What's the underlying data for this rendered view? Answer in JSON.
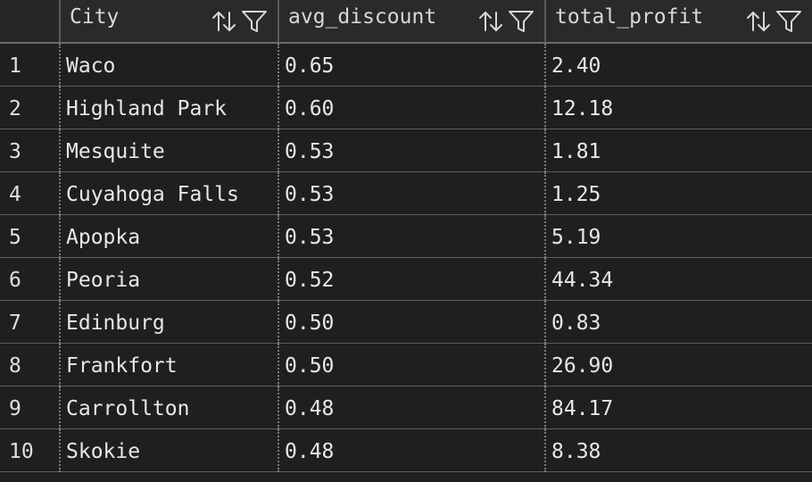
{
  "table": {
    "columns": [
      {
        "key": "city",
        "label": "City"
      },
      {
        "key": "avg_discount",
        "label": "avg_discount"
      },
      {
        "key": "total_profit",
        "label": "total_profit"
      }
    ],
    "rows": [
      {
        "index": "1",
        "city": "Waco",
        "avg_discount": "0.65",
        "total_profit": "2.40"
      },
      {
        "index": "2",
        "city": "Highland Park",
        "avg_discount": "0.60",
        "total_profit": "12.18"
      },
      {
        "index": "3",
        "city": "Mesquite",
        "avg_discount": "0.53",
        "total_profit": "1.81"
      },
      {
        "index": "4",
        "city": "Cuyahoga Falls",
        "avg_discount": "0.53",
        "total_profit": "1.25"
      },
      {
        "index": "5",
        "city": "Apopka",
        "avg_discount": "0.53",
        "total_profit": "5.19"
      },
      {
        "index": "6",
        "city": "Peoria",
        "avg_discount": "0.52",
        "total_profit": "44.34"
      },
      {
        "index": "7",
        "city": "Edinburg",
        "avg_discount": "0.50",
        "total_profit": "0.83"
      },
      {
        "index": "8",
        "city": "Frankfort",
        "avg_discount": "0.50",
        "total_profit": "26.90"
      },
      {
        "index": "9",
        "city": "Carrollton",
        "avg_discount": "0.48",
        "total_profit": "84.17"
      },
      {
        "index": "10",
        "city": "Skokie",
        "avg_discount": "0.48",
        "total_profit": "8.38"
      }
    ]
  },
  "icons": {
    "sort": "sort-icon",
    "filter": "filter-icon"
  },
  "colors": {
    "background": "#1f1f1f",
    "header_background": "#2a2a2a",
    "text": "#e6e6e6",
    "grid_line": "#5c5c5c"
  }
}
